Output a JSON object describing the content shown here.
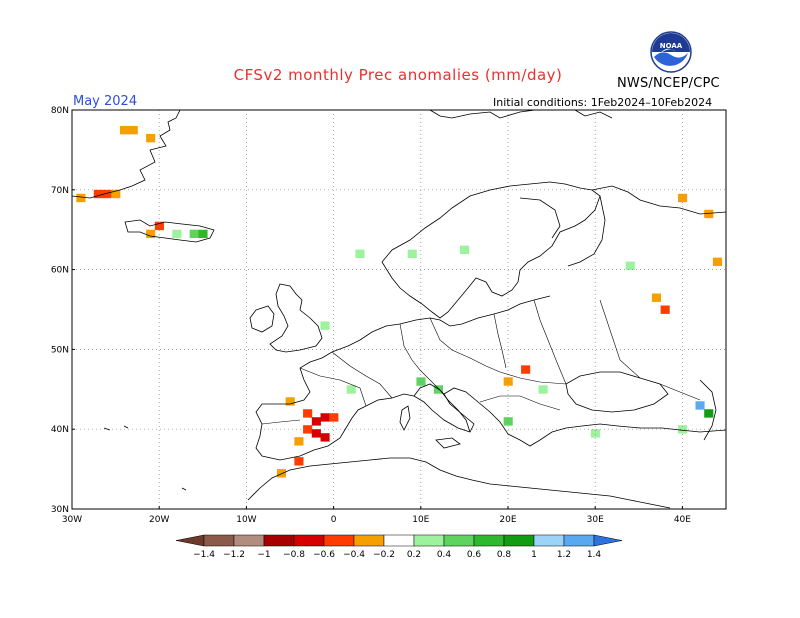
{
  "title": "CFSv2 monthly Prec anomalies (mm/day)",
  "month": "May 2024",
  "initial_conditions": "Initial conditions: 1Feb2024–10Feb2024",
  "agency": "NWS/NCEP/CPC",
  "logo_text": "NOAA",
  "lat_labels": [
    "80N",
    "70N",
    "60N",
    "50N",
    "40N",
    "30N"
  ],
  "lon_labels": [
    "30W",
    "20W",
    "10W",
    "0",
    "10E",
    "20E",
    "30E",
    "40E"
  ],
  "colorbar": {
    "ticks": [
      "−1.4",
      "−1.2",
      "−1",
      "−0.8",
      "−0.6",
      "−0.4",
      "−0.2",
      "0.2",
      "0.4",
      "0.6",
      "0.8",
      "1",
      "1.2",
      "1.4"
    ],
    "colors": [
      "#6b3a2a",
      "#8c5a4a",
      "#b28c7e",
      "#a80000",
      "#d70000",
      "#ff3b00",
      "#f5a000",
      "#ffffff",
      "#9df29d",
      "#5fd35f",
      "#2eb82e",
      "#129c12",
      "#9bd4f8",
      "#5aa8f0",
      "#2d73e0"
    ]
  },
  "chart_data": {
    "type": "heatmap",
    "units": "mm/day",
    "lon_range": [
      -30,
      45
    ],
    "lat_range": [
      30,
      80
    ],
    "cells": [
      {
        "lon": -24,
        "lat": 77.5,
        "v": -0.3
      },
      {
        "lon": -23,
        "lat": 77.5,
        "v": -0.3
      },
      {
        "lon": -21,
        "lat": 76.5,
        "v": -0.3
      },
      {
        "lon": -29,
        "lat": 69,
        "v": -0.3
      },
      {
        "lon": -27,
        "lat": 69.5,
        "v": -0.5
      },
      {
        "lon": -26,
        "lat": 69.5,
        "v": -0.5
      },
      {
        "lon": -25,
        "lat": 69.5,
        "v": -0.3
      },
      {
        "lon": -20,
        "lat": 65.5,
        "v": -0.5
      },
      {
        "lon": -21,
        "lat": 64.5,
        "v": -0.3
      },
      {
        "lon": -18,
        "lat": 64.5,
        "v": 0.3
      },
      {
        "lon": -16,
        "lat": 64.5,
        "v": 0.5
      },
      {
        "lon": -15,
        "lat": 64.5,
        "v": 0.7
      },
      {
        "lon": -5,
        "lat": 43.5,
        "v": -0.3
      },
      {
        "lon": -3,
        "lat": 42,
        "v": -0.5
      },
      {
        "lon": -2,
        "lat": 41,
        "v": -0.7
      },
      {
        "lon": -1,
        "lat": 41.5,
        "v": -0.7
      },
      {
        "lon": 0,
        "lat": 41.5,
        "v": -0.5
      },
      {
        "lon": -3,
        "lat": 40,
        "v": -0.5
      },
      {
        "lon": -2,
        "lat": 39.5,
        "v": -0.7
      },
      {
        "lon": -1,
        "lat": 39,
        "v": -0.7
      },
      {
        "lon": -4,
        "lat": 38.5,
        "v": -0.3
      },
      {
        "lon": -4,
        "lat": 36,
        "v": -0.5
      },
      {
        "lon": -6,
        "lat": 34.5,
        "v": -0.3
      },
      {
        "lon": 3,
        "lat": 62,
        "v": 0.3
      },
      {
        "lon": 9,
        "lat": 62,
        "v": 0.3
      },
      {
        "lon": 15,
        "lat": 62.5,
        "v": 0.3
      },
      {
        "lon": -1,
        "lat": 53,
        "v": 0.3
      },
      {
        "lon": 2,
        "lat": 45,
        "v": 0.3
      },
      {
        "lon": 10,
        "lat": 46,
        "v": 0.5
      },
      {
        "lon": 12,
        "lat": 45,
        "v": 0.5
      },
      {
        "lon": 20,
        "lat": 46,
        "v": -0.3
      },
      {
        "lon": 22,
        "lat": 47.5,
        "v": -0.6
      },
      {
        "lon": 20,
        "lat": 41,
        "v": 0.5
      },
      {
        "lon": 24,
        "lat": 45,
        "v": 0.3
      },
      {
        "lon": 30,
        "lat": 39.5,
        "v": 0.3
      },
      {
        "lon": 40,
        "lat": 40,
        "v": 0.3
      },
      {
        "lon": 43,
        "lat": 42,
        "v": 0.8
      },
      {
        "lon": 42,
        "lat": 43,
        "v": 1.2
      },
      {
        "lon": 37,
        "lat": 56.5,
        "v": -0.3
      },
      {
        "lon": 38,
        "lat": 55,
        "v": -0.5
      },
      {
        "lon": 40,
        "lat": 69,
        "v": -0.3
      },
      {
        "lon": 43,
        "lat": 67,
        "v": -0.3
      },
      {
        "lon": 44,
        "lat": 61,
        "v": -0.3
      },
      {
        "lon": 34,
        "lat": 60.5,
        "v": 0.3
      }
    ]
  }
}
